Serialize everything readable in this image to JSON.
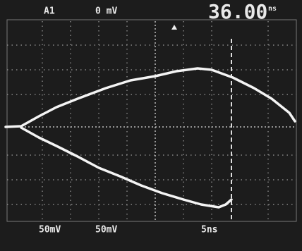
{
  "header": {
    "channel": "A1",
    "offset": "0 mV",
    "time": "36.00",
    "time_unit": "ns"
  },
  "footer": {
    "scale_1": "50mV",
    "scale_2": "50mV",
    "timebase": "5ns"
  }
}
